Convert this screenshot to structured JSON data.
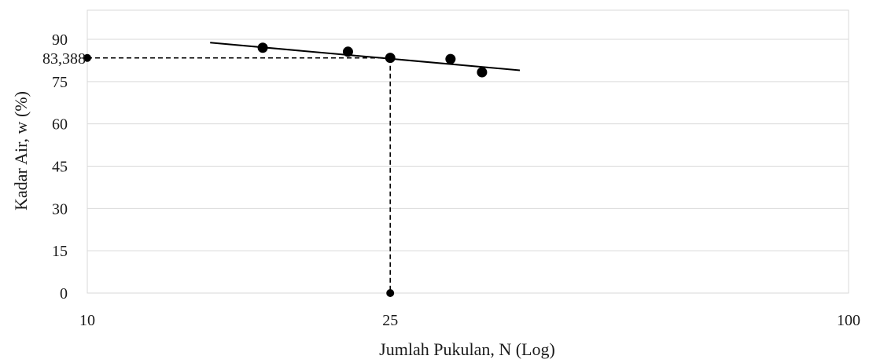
{
  "chart_data": {
    "type": "scatter",
    "title": "",
    "xlabel": "Jumlah Pukulan, N (Log)",
    "ylabel": "Kadar Air, w (%)",
    "x_scale": "log",
    "xlim": [
      10,
      100
    ],
    "ylim": [
      0,
      100
    ],
    "x_ticks": [
      {
        "value": 10,
        "label": "10"
      },
      {
        "value": 25,
        "label": "25"
      },
      {
        "value": 100,
        "label": "100"
      }
    ],
    "y_ticks": [
      {
        "value": 0,
        "label": "0"
      },
      {
        "value": 15,
        "label": "15"
      },
      {
        "value": 30,
        "label": "30"
      },
      {
        "value": 45,
        "label": "45"
      },
      {
        "value": 60,
        "label": "60"
      },
      {
        "value": 75,
        "label": "75"
      },
      {
        "value": 90,
        "label": "90"
      }
    ],
    "grid": true,
    "series": [
      {
        "values": [
          {
            "x": 17,
            "y": 87.0
          },
          {
            "x": 22,
            "y": 85.6
          },
          {
            "x": 25,
            "y": 83.4
          },
          {
            "x": 30,
            "y": 83.0
          },
          {
            "x": 33,
            "y": 78.3
          }
        ]
      }
    ],
    "trendline": {
      "x": [
        14.5,
        37
      ],
      "y": [
        88.8,
        79.0
      ]
    },
    "reference": {
      "x": 25,
      "y": 83.388,
      "label": "83,388"
    },
    "colors": {
      "points": "#000000",
      "trendline": "#000000",
      "grid": "#d9d9d9"
    }
  }
}
